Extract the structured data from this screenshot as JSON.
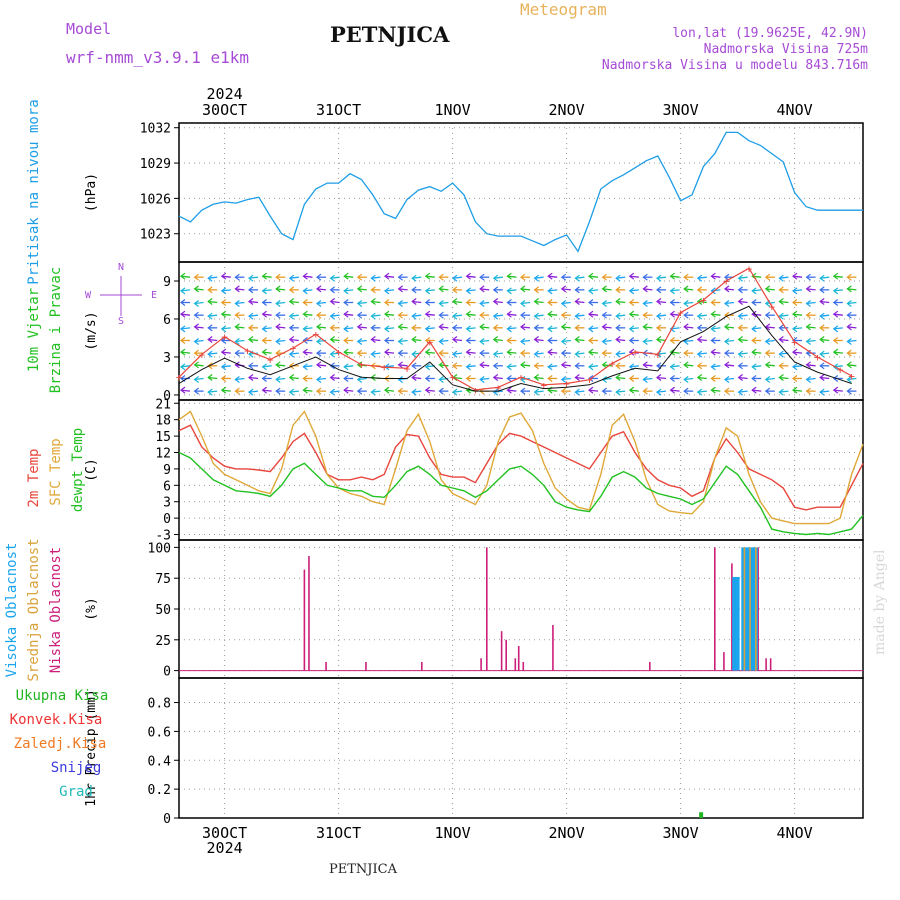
{
  "header": {
    "model_label": "Model",
    "model_name": "wrf-nmm_v3.9.1 e1km",
    "title": "PETNJICA",
    "meteogram_label": "Meteogram",
    "coords": "lon,lat (19.9625E, 42.9N)",
    "elevation": "Nadmorska Visina 725m",
    "model_elevation": "Nadmorska Visina u modelu 843.716m",
    "footer_title": "PETNJICA",
    "watermark": "made by Angel"
  },
  "colors": {
    "pressure": "#1e9ee6",
    "temp2m": "#e8453c",
    "sfc_temp": "#e0a838",
    "dewpoint": "#22c122",
    "cloud_high": "#1aa5ee",
    "cloud_mid": "#d9a23a",
    "cloud_low": "#cc1f7a",
    "ukupna": "#22b522",
    "konvek": "#ee3333",
    "zaledj": "#f07a22",
    "snijeg": "#3b3bdd",
    "grad": "#22b8b8",
    "purple": "#a64bd6",
    "orange": "#e8b25a"
  },
  "chart_data": [
    {
      "panel": "pressure",
      "type": "line",
      "ylabel": "(hPa)",
      "side_labels": [
        "Pritisak na nivou mora"
      ],
      "yticks": [
        1023,
        1026,
        1029,
        1032
      ],
      "ylim": [
        1020.6,
        1032.4
      ],
      "x_day_ticks": [
        "30OCT",
        "31OCT",
        "1NOV",
        "2NOV",
        "3NOV",
        "4NOV"
      ],
      "top_year": "2024",
      "x_days_from_29oct_00": [
        0.6,
        0.7,
        0.8,
        0.9,
        1.0,
        1.1,
        1.2,
        1.3,
        1.4,
        1.5,
        1.6,
        1.7,
        1.8,
        1.9,
        2.0,
        2.1,
        2.2,
        2.3,
        2.4,
        2.5,
        2.6,
        2.7,
        2.8,
        2.9,
        3.0,
        3.1,
        3.2,
        3.3,
        3.4,
        3.5,
        3.6,
        3.7,
        3.8,
        3.9,
        4.0,
        4.1,
        4.2,
        4.3,
        4.4,
        4.5,
        4.6,
        4.7,
        4.8,
        4.9,
        5.0,
        5.1,
        5.2,
        5.3,
        5.4,
        5.5,
        5.6,
        5.7,
        5.8,
        5.9,
        6.0,
        6.1,
        6.2,
        6.3,
        6.4,
        6.5,
        6.6
      ],
      "values": [
        1024.5,
        1024.0,
        1025.0,
        1025.5,
        1025.7,
        1025.6,
        1025.9,
        1026.1,
        1024.5,
        1023.0,
        1022.5,
        1025.5,
        1026.8,
        1027.3,
        1027.3,
        1028.1,
        1027.6,
        1026.3,
        1024.7,
        1024.3,
        1025.9,
        1026.7,
        1027.0,
        1026.6,
        1027.3,
        1026.3,
        1024.0,
        1023.0,
        1022.8,
        1022.8,
        1022.8,
        1022.4,
        1022.0,
        1022.5,
        1022.9,
        1021.5,
        1024.0,
        1026.8,
        1027.5,
        1028.0,
        1028.6,
        1029.2,
        1029.6,
        1027.8,
        1025.8,
        1026.3,
        1028.7,
        1029.8,
        1031.6,
        1031.6,
        1030.9,
        1030.5,
        1029.8,
        1029.1,
        1026.5,
        1025.3,
        1025.0,
        1025.0,
        1025.0,
        1025.0,
        1025.0
      ]
    },
    {
      "panel": "wind",
      "type": "line",
      "ylabel": "(m/s)",
      "side_labels": [
        "10m Vjetar",
        "Brzina i Pravac"
      ],
      "compass": [
        "N",
        "W",
        "E",
        "S"
      ],
      "yticks": [
        0,
        3,
        6,
        9
      ],
      "ylim": [
        -0.4,
        10.5
      ],
      "x_days_from_29oct_00": [
        0.6,
        0.8,
        1.0,
        1.2,
        1.4,
        1.6,
        1.8,
        2.0,
        2.2,
        2.4,
        2.6,
        2.8,
        3.0,
        3.2,
        3.4,
        3.6,
        3.8,
        4.0,
        4.2,
        4.4,
        4.6,
        4.8,
        5.0,
        5.2,
        5.4,
        5.6,
        5.8,
        6.0,
        6.2,
        6.4,
        6.5
      ],
      "speed": [
        1.4,
        3.2,
        4.6,
        3.5,
        2.8,
        3.7,
        4.8,
        3.4,
        2.4,
        2.2,
        2.1,
        4.2,
        1.4,
        0.4,
        0.6,
        1.4,
        0.8,
        0.9,
        1.2,
        2.5,
        3.4,
        3.2,
        6.5,
        7.5,
        9.0,
        10.0,
        7.0,
        4.2,
        3.0,
        2.0,
        1.5
      ],
      "gust": [
        0.9,
        2.0,
        2.9,
        2.1,
        1.6,
        2.3,
        3.0,
        2.0,
        1.4,
        1.3,
        1.3,
        2.6,
        0.8,
        0.3,
        0.3,
        0.9,
        0.5,
        0.6,
        0.8,
        1.5,
        2.1,
        1.9,
        4.2,
        5.0,
        6.2,
        7.0,
        4.7,
        2.6,
        1.8,
        1.2,
        0.9
      ]
    },
    {
      "panel": "temperature",
      "type": "line",
      "ylabel": "(C)",
      "side_labels": [
        "2m Temp",
        "SFC Temp",
        "dewpt Temp"
      ],
      "yticks": [
        -3,
        0,
        3,
        6,
        9,
        12,
        15,
        18,
        21
      ],
      "ylim": [
        -4,
        21.6
      ],
      "x_days_from_29oct_00": [
        0.6,
        0.7,
        0.8,
        0.9,
        1.0,
        1.1,
        1.2,
        1.3,
        1.4,
        1.5,
        1.6,
        1.7,
        1.8,
        1.9,
        2.0,
        2.1,
        2.2,
        2.3,
        2.4,
        2.5,
        2.6,
        2.7,
        2.8,
        2.9,
        3.0,
        3.1,
        3.2,
        3.3,
        3.4,
        3.5,
        3.6,
        3.7,
        3.8,
        3.9,
        4.0,
        4.1,
        4.2,
        4.3,
        4.4,
        4.5,
        4.6,
        4.7,
        4.8,
        4.9,
        5.0,
        5.1,
        5.2,
        5.3,
        5.4,
        5.5,
        5.6,
        5.7,
        5.8,
        5.9,
        6.0,
        6.1,
        6.2,
        6.3,
        6.4,
        6.5,
        6.6
      ],
      "series": [
        {
          "name": "2m Temp",
          "values": [
            16,
            17,
            13,
            11,
            9.5,
            9,
            9,
            8.8,
            8.5,
            11,
            14,
            15.5,
            12,
            8,
            7,
            7,
            7.5,
            7,
            8,
            13,
            15.3,
            15,
            11,
            8,
            7.5,
            7.5,
            6.5,
            10,
            13.5,
            15.5,
            15,
            14,
            13,
            12,
            11,
            10,
            9,
            12,
            15,
            15.8,
            12,
            9,
            7,
            6,
            5.5,
            4,
            5,
            11,
            14.5,
            12,
            9,
            8,
            7,
            5.5,
            2,
            1.5,
            2,
            2,
            2,
            6,
            10
          ]
        },
        {
          "name": "SFC Temp",
          "values": [
            18,
            19.5,
            15,
            10,
            8,
            7,
            6,
            5,
            4.5,
            9,
            17,
            19.5,
            15,
            8,
            5.5,
            4.5,
            4,
            3,
            2.5,
            9,
            16,
            19,
            14,
            7,
            4.5,
            3.5,
            2.5,
            6,
            14,
            18.5,
            19.2,
            16,
            10,
            5.5,
            3.5,
            2,
            1.5,
            8,
            17,
            19,
            14,
            7,
            2.5,
            1.3,
            1,
            0.8,
            3,
            11,
            16.5,
            15,
            8,
            3,
            0,
            -0.5,
            -1,
            -1,
            -1,
            -1,
            0,
            8,
            13.5
          ]
        },
        {
          "name": "dewpt Temp",
          "values": [
            12,
            11,
            9,
            7,
            6,
            5,
            4.8,
            4.5,
            4,
            6,
            9,
            10,
            8,
            6,
            5.5,
            5,
            5,
            4,
            3.8,
            6,
            8.5,
            9.5,
            8,
            6,
            5.5,
            5,
            3.8,
            5,
            7,
            9,
            9.5,
            8,
            6,
            3,
            2,
            1.5,
            1.2,
            4,
            7.5,
            8.5,
            7.5,
            5.5,
            4.5,
            4,
            3.5,
            2.5,
            3.5,
            6.5,
            9.5,
            8,
            5,
            2,
            -2,
            -2.5,
            -2.8,
            -3,
            -2.8,
            -3,
            -2.5,
            -2,
            0.5
          ]
        }
      ]
    },
    {
      "panel": "clouds",
      "type": "bar",
      "ylabel": "(%)",
      "side_labels": [
        "Visoka Oblacnost",
        "Srednja Oblacnost",
        "Niska Oblacnost"
      ],
      "yticks": [
        0,
        25,
        50,
        75,
        100
      ],
      "ylim": [
        -6,
        106
      ],
      "series": [
        {
          "name": "Niska Oblacnost",
          "x_days_from_29oct_00": [
            1.7,
            1.74,
            1.89,
            2.24,
            2.73,
            3.25,
            3.3,
            3.43,
            3.47,
            3.55,
            3.58,
            3.62,
            3.88,
            4.73,
            5.3,
            5.38,
            5.45,
            5.48,
            5.68,
            5.75,
            5.79
          ],
          "values": [
            82,
            93,
            7,
            7,
            7,
            10,
            100,
            32,
            25,
            10,
            20,
            7,
            37,
            7,
            100,
            15,
            87,
            75,
            100,
            10,
            10
          ]
        },
        {
          "name": "Visoka Oblacnost",
          "x_days_from_29oct_00": [
            5.47,
            5.5,
            5.55,
            5.57,
            5.6,
            5.62,
            5.64,
            5.66
          ],
          "values": [
            76,
            76,
            100,
            100,
            100,
            100,
            100,
            100
          ]
        },
        {
          "name": "Srednja Oblacnost",
          "x_days_from_29oct_00": [
            5.56,
            5.61,
            5.66
          ],
          "values": [
            100,
            100,
            100
          ]
        }
      ]
    },
    {
      "panel": "precip",
      "type": "bar",
      "ylabel": "1hr Precip (mm)",
      "legend": [
        "Ukupna Kisa",
        "Konvek.Kisa",
        "Zaledj.Kisa",
        "Snijeg",
        "Grad"
      ],
      "yticks": [
        0,
        0.2,
        0.4,
        0.6,
        0.8
      ],
      "ylim": [
        0,
        0.97
      ],
      "x_day_ticks": [
        "30OCT",
        "31OCT",
        "1NOV",
        "2NOV",
        "3NOV",
        "4NOV"
      ],
      "bottom_year": "2024",
      "series": [
        {
          "name": "Ukupna Kisa",
          "x_days_from_29oct_00": [
            5.18
          ],
          "values": [
            0.04
          ]
        }
      ]
    }
  ]
}
